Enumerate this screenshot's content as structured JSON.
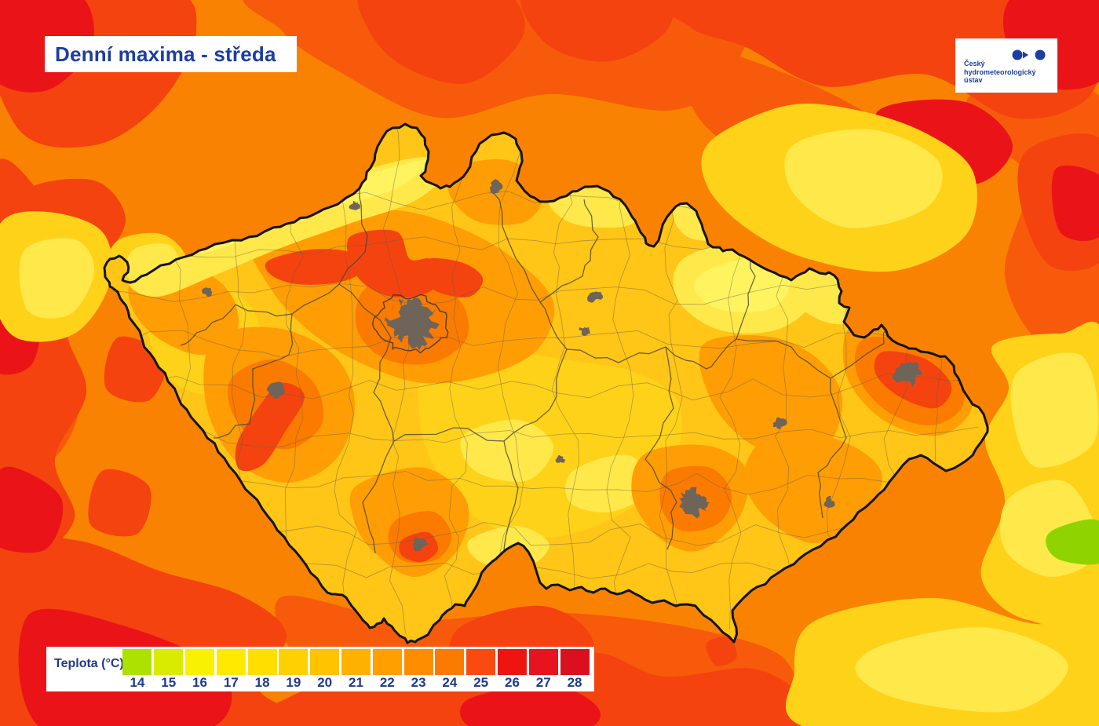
{
  "title": "Denní maxima - středa",
  "logo": {
    "org_name": "Český hydrometeorologický ústav",
    "lines": [
      "Český",
      "hydrometeorologický",
      "ústav"
    ],
    "color": "#1C3EA0"
  },
  "legend": {
    "label": "Teplota (°C)",
    "ticks": [
      14,
      15,
      16,
      17,
      18,
      19,
      20,
      21,
      22,
      23,
      24,
      25,
      26,
      27,
      28
    ],
    "colors": [
      "#ADE100",
      "#D8EB00",
      "#F8F200",
      "#FFE900",
      "#FFDE00",
      "#FFD100",
      "#FFC300",
      "#FFB100",
      "#FF9F00",
      "#FF8D00",
      "#FB7A00",
      "#F94B10",
      "#EE1511",
      "#E7131F",
      "#DB101E"
    ]
  },
  "map": {
    "colors": {
      "outside_base": "#FA8202",
      "inside_base": "#FFC517",
      "country_border": "#141414",
      "district_line": "#5F5F49",
      "region_line": "#46463A",
      "city_fill": "#6E6459",
      "hot_red": "#F4430F",
      "deep_red": "#EA1418",
      "warm_orange": "#FF9D05",
      "deep_orange": "#FB7B00",
      "mid_orange": "#F75A0B",
      "yellow": "#FFD21A",
      "pale_yellow": "#FFE84A",
      "bright_yellow": "#FFF460",
      "cool_green": "#8FD400"
    }
  }
}
